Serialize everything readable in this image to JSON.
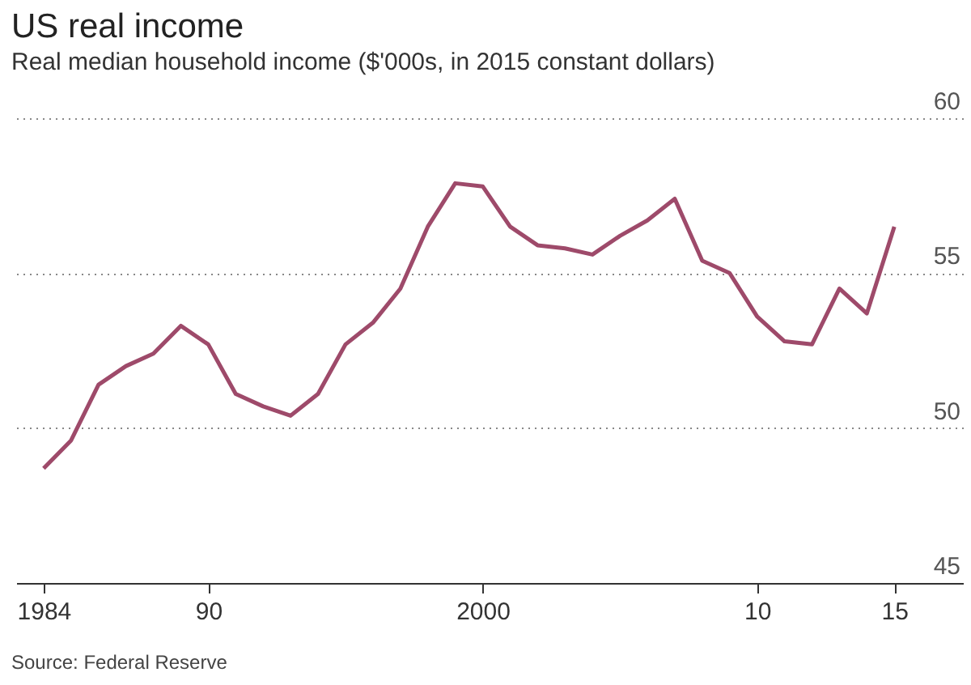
{
  "chart_data": {
    "type": "line",
    "title": "US real income",
    "subtitle": "Real median household income ($'000s, in 2015 constant dollars)",
    "x": [
      1984,
      1985,
      1986,
      1987,
      1988,
      1989,
      1990,
      1991,
      1992,
      1993,
      1994,
      1995,
      1996,
      1997,
      1998,
      1999,
      2000,
      2001,
      2002,
      2003,
      2004,
      2005,
      2006,
      2007,
      2008,
      2009,
      2010,
      2011,
      2012,
      2013,
      2014,
      2015
    ],
    "series": [
      {
        "color": "#9e4a6a",
        "values": [
          48.7,
          49.6,
          51.4,
          52.0,
          52.4,
          53.3,
          52.7,
          51.1,
          50.7,
          50.4,
          51.1,
          52.7,
          53.4,
          54.5,
          56.5,
          57.9,
          57.8,
          56.5,
          55.9,
          55.8,
          55.6,
          56.2,
          56.7,
          57.4,
          55.4,
          55.0,
          53.6,
          52.8,
          52.7,
          54.5,
          53.7,
          56.5
        ]
      }
    ],
    "xlim": [
      1983,
      2017.5
    ],
    "xticks": [
      1984,
      {
        "value": 1990,
        "label": "90"
      },
      2000,
      {
        "value": 2010,
        "label": "10"
      },
      {
        "value": 2015,
        "label": "15"
      }
    ],
    "ylim": [
      45,
      60
    ],
    "yticks": [
      45,
      50,
      55,
      60
    ],
    "grid": "y",
    "legend": false,
    "marker": "none",
    "line_style": "solid",
    "annotations": [
      "Source: Federal Reserve"
    ]
  }
}
